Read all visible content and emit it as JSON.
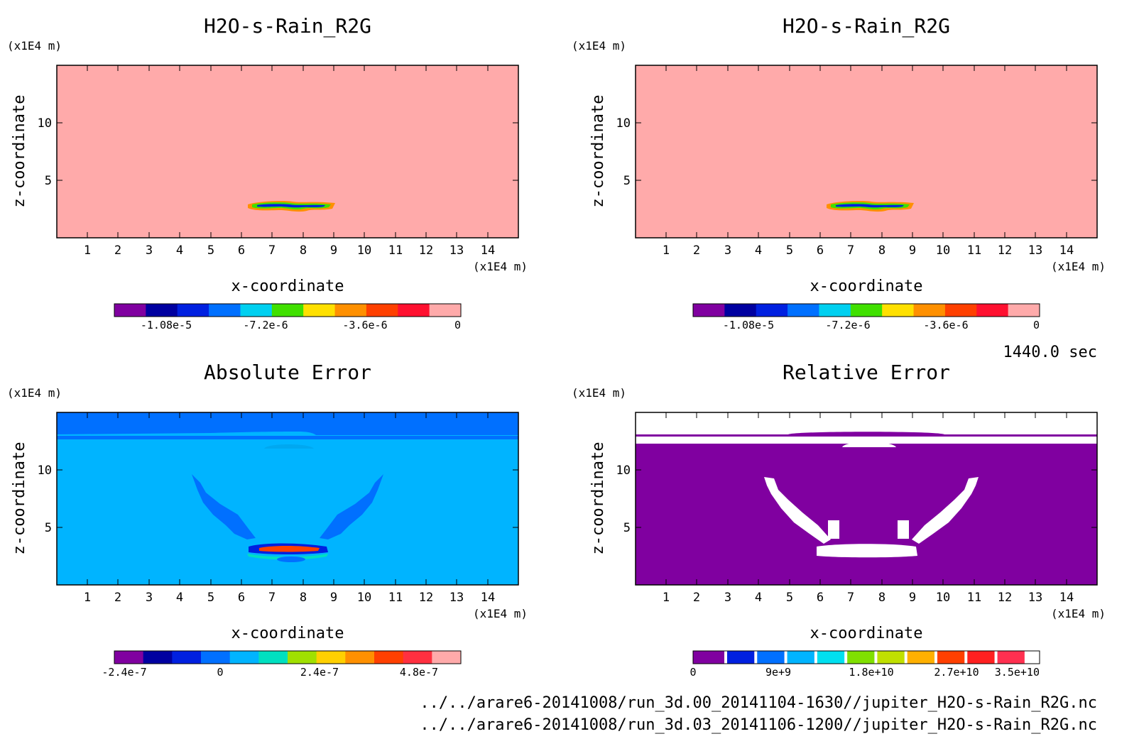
{
  "timestamp": "1440.0 sec",
  "file_paths": [
    "../../arare6-20141008/run_3d.00_20141104-1630//jupiter_H2O-s-Rain_R2G.nc",
    "../../arare6-20141008/run_3d.03_20141106-1200//jupiter_H2O-s-Rain_R2G.nc"
  ],
  "chart_data": [
    {
      "type": "heatmap",
      "title": "H2O-s-Rain_R2G",
      "xlabel": "x-coordinate",
      "ylabel": "z-coordinate",
      "x_unit": "(x1E4 m)",
      "y_unit": "(x1E4 m)",
      "xticks": [
        "1",
        "2",
        "3",
        "4",
        "5",
        "6",
        "7",
        "8",
        "9",
        "10",
        "11",
        "12",
        "13",
        "14"
      ],
      "yticks": [
        "5",
        "10"
      ],
      "xlim": [
        0,
        15
      ],
      "ylim": [
        0,
        15
      ],
      "background_color": "#ffaaaa",
      "feature": {
        "x_range": [
          6.2,
          9.0
        ],
        "z_center": 2.9,
        "min_value": -1.2e-05
      },
      "colorbar": {
        "colors": [
          "#8000a0",
          "#0000a0",
          "#0020e0",
          "#0070ff",
          "#00d0f0",
          "#40e000",
          "#ffe000",
          "#ff9000",
          "#ff4000",
          "#ff1030",
          "#ffaaaa"
        ],
        "tick_labels": [
          "-1.08e-5",
          "-7.2e-6",
          "-3.6e-6",
          "0"
        ]
      }
    },
    {
      "type": "heatmap",
      "title": "H2O-s-Rain_R2G",
      "xlabel": "x-coordinate",
      "ylabel": "z-coordinate",
      "x_unit": "(x1E4 m)",
      "y_unit": "(x1E4 m)",
      "xticks": [
        "1",
        "2",
        "3",
        "4",
        "5",
        "6",
        "7",
        "8",
        "9",
        "10",
        "11",
        "12",
        "13",
        "14"
      ],
      "yticks": [
        "5",
        "10"
      ],
      "xlim": [
        0,
        15
      ],
      "ylim": [
        0,
        15
      ],
      "background_color": "#ffaaaa",
      "feature": {
        "x_range": [
          6.2,
          9.0
        ],
        "z_center": 2.9,
        "min_value": -1.2e-05
      },
      "colorbar": {
        "colors": [
          "#8000a0",
          "#0000a0",
          "#0020e0",
          "#0070ff",
          "#00d0f0",
          "#40e000",
          "#ffe000",
          "#ff9000",
          "#ff4000",
          "#ff1030",
          "#ffaaaa"
        ],
        "tick_labels": [
          "-1.08e-5",
          "-7.2e-6",
          "-3.6e-6",
          "0"
        ]
      }
    },
    {
      "type": "heatmap",
      "title": "Absolute Error",
      "xlabel": "x-coordinate",
      "ylabel": "z-coordinate",
      "x_unit": "(x1E4 m)",
      "y_unit": "(x1E4 m)",
      "xticks": [
        "1",
        "2",
        "3",
        "4",
        "5",
        "6",
        "7",
        "8",
        "9",
        "10",
        "11",
        "12",
        "13",
        "14"
      ],
      "yticks": [
        "5",
        "10"
      ],
      "xlim": [
        0,
        15
      ],
      "ylim": [
        0,
        15
      ],
      "background_color": "#00b4ff",
      "colorbar": {
        "colors": [
          "#8000a0",
          "#0000a0",
          "#0020e0",
          "#0070ff",
          "#00b4ff",
          "#00e0c0",
          "#a0e000",
          "#ffd000",
          "#ff9000",
          "#ff4000",
          "#ff3040",
          "#ffaaaa"
        ],
        "tick_labels": [
          "-2.4e-7",
          "0",
          "2.4e-7",
          "4.8e-7"
        ]
      }
    },
    {
      "type": "heatmap",
      "title": "Relative Error",
      "xlabel": "x-coordinate",
      "ylabel": "z-coordinate",
      "x_unit": "(x1E4 m)",
      "y_unit": "(x1E4 m)",
      "xticks": [
        "1",
        "2",
        "3",
        "4",
        "5",
        "6",
        "7",
        "8",
        "9",
        "10",
        "11",
        "12",
        "13",
        "14"
      ],
      "yticks": [
        "5",
        "10"
      ],
      "xlim": [
        0,
        15
      ],
      "ylim": [
        0,
        15
      ],
      "background_color": "#8000a0",
      "colorbar": {
        "colors": [
          "#8000a0",
          "#ffffff",
          "#0020e0",
          "#ffffff",
          "#0070ff",
          "#ffffff",
          "#00b4ff",
          "#ffffff",
          "#00e0f0",
          "#ffffff",
          "#80e000",
          "#ffffff",
          "#c0e000",
          "#ffffff",
          "#ffb000",
          "#ffffff",
          "#ff4000",
          "#ffffff",
          "#ff2020",
          "#ffffff",
          "#ff3050",
          "#ffffff"
        ],
        "tick_labels": [
          "0",
          "9e+9",
          "1.8e+10",
          "2.7e+10",
          "3.5e+10"
        ]
      }
    }
  ]
}
